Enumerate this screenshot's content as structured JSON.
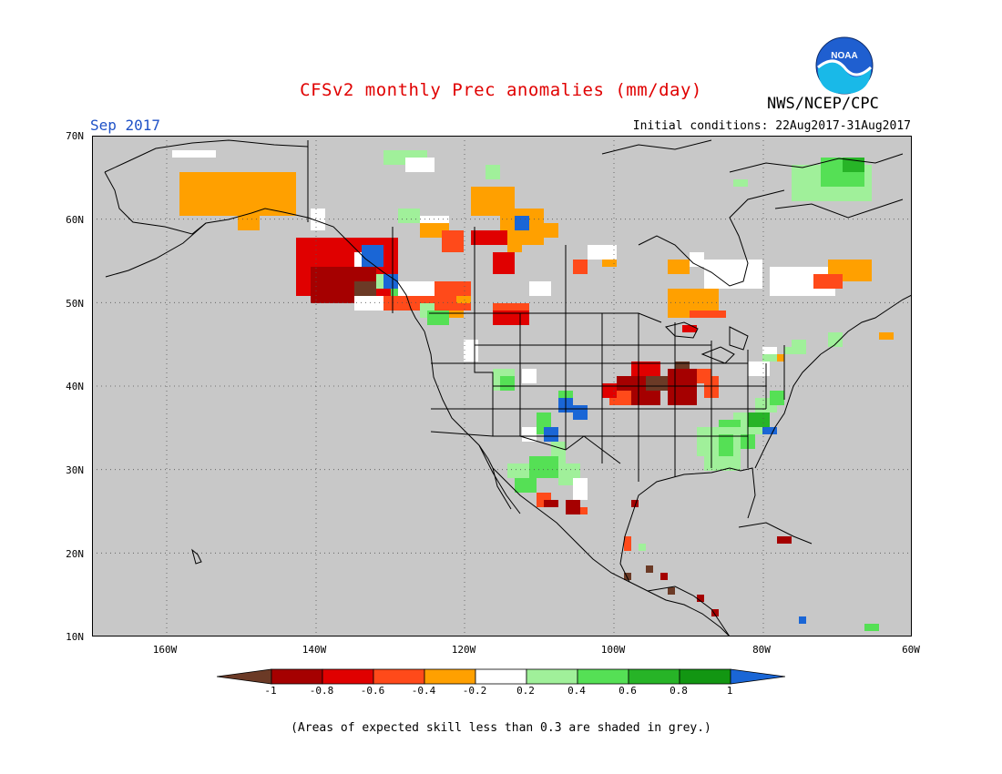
{
  "header": {
    "title": "CFSv2 monthly Prec anomalies (mm/day)",
    "org": "NWS/NCEP/CPC",
    "logo_text": "NOAA",
    "month": "Sep 2017",
    "initial_conditions": "Initial conditions: 22Aug2017-31Aug2017"
  },
  "map": {
    "background_color": "#c8c8c8",
    "lat_ticks": [
      "70N",
      "60N",
      "50N",
      "40N",
      "30N",
      "20N",
      "10N"
    ],
    "lon_ticks": [
      "160W",
      "140W",
      "120W",
      "100W",
      "80W",
      "60W"
    ],
    "region": "North America",
    "gridlines": "dotted"
  },
  "colorbar": {
    "tick_labels": [
      "-1",
      "-0.8",
      "-0.6",
      "-0.4",
      "-0.2",
      "0.2",
      "0.4",
      "0.6",
      "0.8",
      "1"
    ],
    "colors": {
      "below_minus1": "#6b3a26",
      "m1_m08": "#a50000",
      "m08_m06": "#e00000",
      "m06_m04": "#ff4a1a",
      "m04_m02": "#ffa000",
      "m02_p02": "#ffffff",
      "p02_p04": "#a0f09a",
      "p04_p06": "#55e055",
      "p06_p08": "#27b427",
      "p08_p1": "#129612",
      "above_1": "#1a66d6"
    }
  },
  "footnote": "(Areas of expected skill less than 0.3 are shaded in grey.)"
}
